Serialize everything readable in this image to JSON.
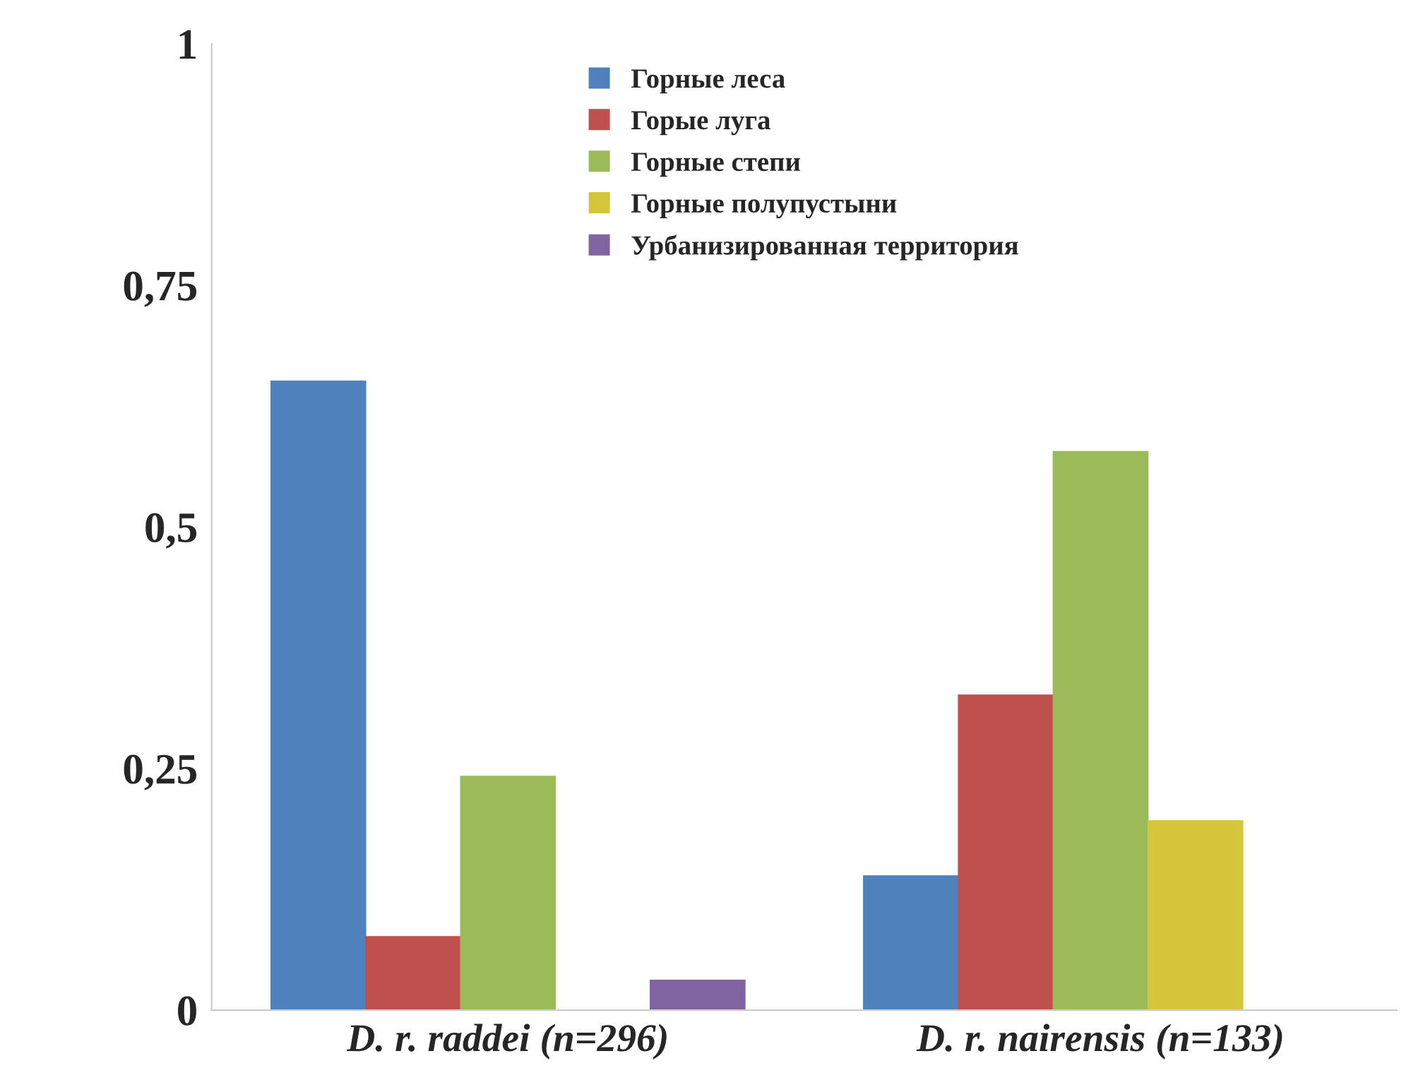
{
  "chart_data": {
    "type": "bar",
    "categories": [
      "D. r. raddei (n=296)",
      "D. r. nairensis (n=133)"
    ],
    "series": [
      {
        "name": "Горные леса",
        "color": "#4f81bd",
        "values": [
          0.651,
          0.139
        ]
      },
      {
        "name": "Горые луга",
        "color": "#c0504d",
        "values": [
          0.076,
          0.326
        ]
      },
      {
        "name": "Горные степи",
        "color": "#9bbb59",
        "values": [
          0.242,
          0.578
        ]
      },
      {
        "name": "Горные полупустыни",
        "color": "#d4c53a",
        "values": [
          0,
          0.196
        ]
      },
      {
        "name": "Урбанизированная территория",
        "color": "#8064a2",
        "values": [
          0.031,
          0
        ]
      }
    ],
    "ylim": [
      0,
      1
    ],
    "yticks": [
      0,
      {
        "value": 0.25,
        "label": "0,25"
      },
      {
        "value": 0.5,
        "label": "0,5"
      },
      {
        "value": 0.75,
        "label": "0,75"
      },
      1
    ],
    "grid": false,
    "legend": "top"
  }
}
